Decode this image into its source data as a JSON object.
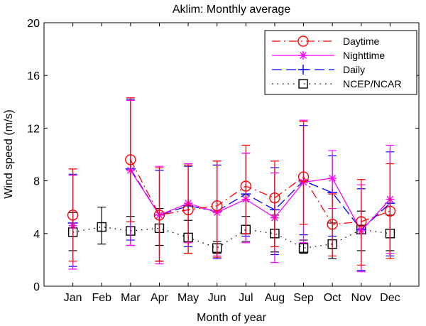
{
  "chart_data": {
    "type": "line",
    "title": "Aklim: Monthly average",
    "xlabel": "Month of year",
    "ylabel": "Wind speed (m/s)",
    "categories": [
      "Jan",
      "Feb",
      "Mar",
      "Apr",
      "May",
      "Jun",
      "Jul",
      "Aug",
      "Sep",
      "Oct",
      "Nov",
      "Dec"
    ],
    "ylim": [
      0,
      20
    ],
    "yticks": [
      0,
      4,
      8,
      12,
      16,
      20
    ],
    "grid": false,
    "legend_position": "top-right",
    "series": [
      {
        "name": "Daytime",
        "color": "#ff0000",
        "line_style": "dash-dot",
        "marker": "circle",
        "values": [
          5.4,
          null,
          9.6,
          5.4,
          5.8,
          6.1,
          7.6,
          6.7,
          8.3,
          4.7,
          4.9,
          5.7
        ],
        "error_low": [
          1.9,
          null,
          4.9,
          1.9,
          2.5,
          2.2,
          4.0,
          3.0,
          4.7,
          2.3,
          1.6,
          2.1
        ],
        "error_high": [
          8.9,
          null,
          14.3,
          9.0,
          9.2,
          9.5,
          10.7,
          9.5,
          12.5,
          7.0,
          8.1,
          9.3
        ]
      },
      {
        "name": "Nighttime",
        "color": "#ff00ff",
        "line_style": "solid",
        "marker": "star",
        "values": [
          4.6,
          null,
          8.8,
          5.4,
          6.3,
          5.6,
          6.6,
          5.2,
          7.9,
          8.2,
          4.2,
          6.6
        ],
        "error_low": [
          1.3,
          null,
          3.1,
          1.7,
          3.3,
          2.3,
          3.3,
          1.8,
          3.3,
          5.9,
          1.1,
          2.5
        ],
        "error_high": [
          8.4,
          null,
          14.1,
          9.1,
          9.3,
          9.5,
          10.1,
          8.6,
          12.6,
          10.3,
          7.7,
          10.7
        ]
      },
      {
        "name": "Daily",
        "color": "#0000ff",
        "line_style": "dashed",
        "marker": "plus",
        "values": [
          4.8,
          null,
          8.9,
          5.4,
          6.1,
          5.7,
          7.0,
          5.8,
          8.0,
          7.1,
          4.3,
          6.3
        ],
        "error_low": [
          1.5,
          null,
          3.5,
          1.9,
          3.0,
          2.1,
          3.8,
          2.4,
          3.9,
          3.8,
          1.2,
          2.3
        ],
        "error_high": [
          8.5,
          null,
          14.2,
          8.8,
          9.1,
          9.2,
          10.1,
          9.0,
          12.2,
          9.9,
          7.4,
          10.2
        ]
      },
      {
        "name": "NCEP/NCAR",
        "color": "#000000",
        "line_style": "dotted",
        "marker": "square",
        "values": [
          4.1,
          4.5,
          4.2,
          4.4,
          3.7,
          2.9,
          4.3,
          4.0,
          2.9,
          3.2,
          4.3,
          4.0
        ],
        "error_low": [
          2.7,
          3.2,
          3.1,
          3.1,
          2.5,
          2.5,
          3.4,
          2.6,
          2.5,
          2.1,
          2.7,
          2.7
        ],
        "error_high": [
          5.6,
          6.0,
          5.3,
          5.9,
          5.0,
          3.4,
          5.3,
          5.4,
          3.5,
          4.8,
          5.7,
          5.4
        ]
      }
    ]
  }
}
